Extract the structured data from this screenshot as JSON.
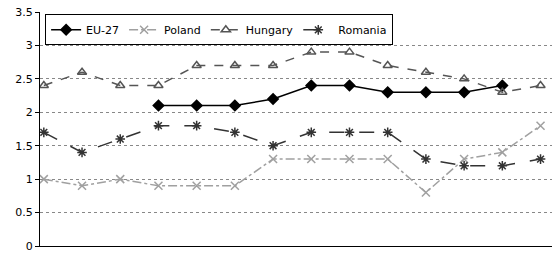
{
  "chart_data": {
    "type": "line",
    "categories": [
      null,
      null,
      null,
      null,
      null,
      null,
      null,
      null,
      null,
      null,
      null,
      null,
      null,
      null
    ],
    "series": [
      {
        "name": "EU-27",
        "color": "#000000",
        "marker": "diamond",
        "line_style": "solid",
        "values": [
          null,
          null,
          null,
          2.1,
          2.1,
          2.1,
          2.2,
          2.4,
          2.4,
          2.3,
          2.3,
          2.3,
          2.4,
          null
        ]
      },
      {
        "name": "Poland",
        "color": "#a0a0a0",
        "marker": "x",
        "line_style": "dashdot",
        "values": [
          1.0,
          0.9,
          1.0,
          0.9,
          0.9,
          0.9,
          1.3,
          1.3,
          1.3,
          1.3,
          0.8,
          1.3,
          1.4,
          1.8
        ]
      },
      {
        "name": "Hungary",
        "color": "#555555",
        "marker": "triangle-open",
        "line_style": "dash",
        "values": [
          2.4,
          2.6,
          2.4,
          2.4,
          2.7,
          2.7,
          2.7,
          2.9,
          2.9,
          2.7,
          2.6,
          2.5,
          2.3,
          2.4
        ]
      },
      {
        "name": "Romania",
        "color": "#333333",
        "marker": "asterisk",
        "line_style": "longdash",
        "values": [
          1.7,
          1.4,
          1.6,
          1.8,
          1.8,
          1.7,
          1.5,
          1.7,
          1.7,
          1.7,
          1.3,
          1.2,
          1.2,
          1.3
        ]
      }
    ],
    "ylim": [
      0,
      3.5
    ],
    "yticks": [
      0,
      0.5,
      1,
      1.5,
      2,
      2.5,
      3,
      3.5
    ],
    "grid": true,
    "legend": "top left",
    "tick_labels": "y"
  }
}
